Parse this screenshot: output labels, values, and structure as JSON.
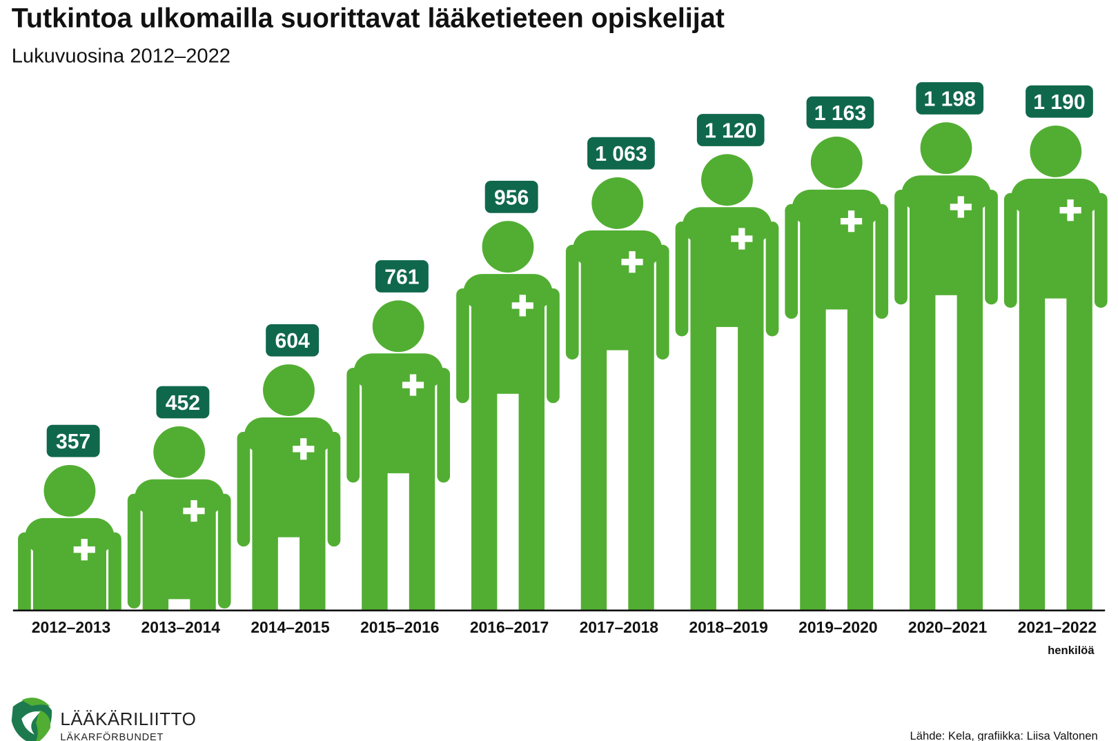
{
  "chart_data": {
    "type": "bar",
    "title": "Tutkintoa ulkomailla suorittavat lääketieteen opiskelijat",
    "subtitle": "Lukuvuosina 2012–2022",
    "categories": [
      "2012–2013",
      "2013–2014",
      "2014–2015",
      "2015–2016",
      "2016–2017",
      "2017–2018",
      "2018–2019",
      "2019–2020",
      "2020–2021",
      "2021–2022"
    ],
    "values": [
      357,
      452,
      604,
      761,
      956,
      1063,
      1120,
      1163,
      1198,
      1190
    ],
    "value_labels": [
      "357",
      "452",
      "604",
      "761",
      "956",
      "1 063",
      "1 120",
      "1 163",
      "1 198",
      "1 190"
    ],
    "unit_label": "henkilöä",
    "mark": "person-pictogram",
    "colors": {
      "figure": "#52ae32",
      "badge": "#10684c",
      "cross": "#ffffff"
    }
  },
  "source": "Lähde: Kela, grafiikka: Liisa Valtonen",
  "logo": {
    "name": "LÄÄKÄRILIITTO",
    "subname": "LÄKARFÖRBUNDET"
  }
}
